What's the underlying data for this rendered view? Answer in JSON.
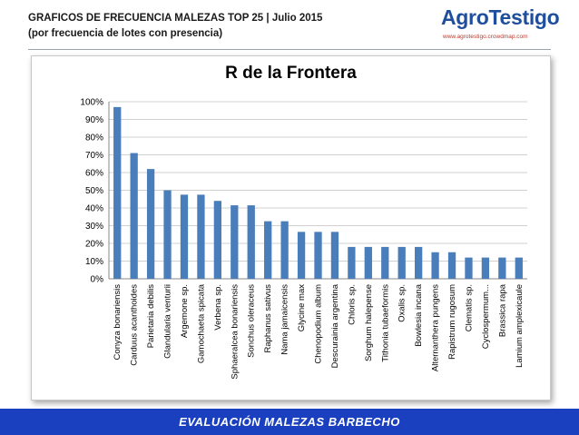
{
  "header": {
    "title": "GRAFICOS DE FRECUENCIA MALEZAS TOP 25 | Julio 2015",
    "subtitle": "(por frecuencia de lotes con presencia)"
  },
  "logo": {
    "name": "AgroTestigo",
    "url": "www.agrotestigo.crowdmap.com"
  },
  "footer": {
    "text": "EVALUACIÓN MALEZAS BARBECHO"
  },
  "colors": {
    "bar": "#4a7ebb",
    "footer": "#1a3fbf",
    "logo": "#1f4e9c"
  },
  "chart_data": {
    "type": "bar",
    "title": "R de la Frontera",
    "xlabel": "",
    "ylabel": "",
    "ylim": [
      0,
      100
    ],
    "yticks": [
      "0%",
      "10%",
      "20%",
      "30%",
      "40%",
      "50%",
      "60%",
      "70%",
      "80%",
      "90%",
      "100%"
    ],
    "grid": true,
    "categories": [
      "Conyza bonariensis",
      "Carduus acanthoides",
      "Parietaria debilis",
      "Glandularia venturii",
      "Argemone sp.",
      "Gamochaeta spicata",
      "Verbena sp.",
      "Sphaeralcea bonariensis",
      "Sonchus oleraceus",
      "Raphanus sativus",
      "Nama jamaicensis",
      "Glycine max",
      "Chenopodium album",
      "Descurainia argentina",
      "Chloris sp.",
      "Sorghum halepense",
      "Tithonia tubaeformis",
      "Oxalis sp.",
      "Bowlesia incana",
      "Alternanthera pungens",
      "Rapistrum rugosum",
      "Clematis sp.",
      "Cyclospermum...",
      "Brassica rapa",
      "Lamium amplexicaule"
    ],
    "values": [
      97,
      71,
      62,
      50,
      47.5,
      47.5,
      44,
      41.5,
      41.5,
      32.5,
      32.5,
      26.5,
      26.5,
      26.5,
      18,
      18,
      18,
      18,
      18,
      15,
      15,
      12,
      12,
      12,
      12
    ]
  }
}
